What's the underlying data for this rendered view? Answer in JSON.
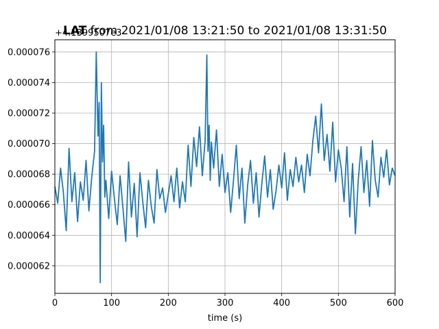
{
  "chart_data": {
    "type": "line",
    "title": "LAT from 2021/01/08 13:21:50 to 2021/01/08 13:31:50",
    "title_bold_part": "LAT",
    "title_rest": " from 2021/01/08 13:21:50 to 2021/01/08 13:31:50",
    "xlabel": "time (s)",
    "ylabel": "",
    "y_offset_label": "+4.1399507e3",
    "xlim": [
      0,
      600
    ],
    "ylim": [
      6.02e-05,
      7.68e-05
    ],
    "xticks": [
      0,
      100,
      200,
      300,
      400,
      500,
      600
    ],
    "yticks": [
      6.2e-05,
      6.4e-05,
      6.6e-05,
      6.8e-05,
      7e-05,
      7.2e-05,
      7.4e-05,
      7.6e-05
    ],
    "ytick_labels": [
      "0.000062",
      "0.000064",
      "0.000066",
      "0.000068",
      "0.000070",
      "0.000072",
      "0.000074",
      "0.000076"
    ],
    "grid": true,
    "line_color": "#1f77b4",
    "series": [
      {
        "values_note": "",
        "x": [
          0,
          5,
          10,
          15,
          20,
          25,
          30,
          35,
          40,
          45,
          50,
          55,
          60,
          65,
          70,
          73,
          76,
          78,
          80,
          82,
          84,
          86,
          88,
          90,
          95,
          100,
          105,
          110,
          115,
          120,
          125,
          130,
          135,
          140,
          145,
          150,
          155,
          160,
          165,
          170,
          175,
          180,
          185,
          190,
          195,
          200,
          205,
          210,
          215,
          220,
          225,
          230,
          235,
          240,
          245,
          250,
          255,
          260,
          265,
          268,
          270,
          272,
          274,
          276,
          280,
          285,
          290,
          295,
          300,
          305,
          310,
          315,
          320,
          325,
          330,
          335,
          340,
          345,
          350,
          355,
          360,
          365,
          370,
          375,
          380,
          385,
          390,
          395,
          400,
          405,
          410,
          415,
          420,
          425,
          430,
          435,
          440,
          445,
          450,
          455,
          460,
          465,
          470,
          475,
          480,
          485,
          490,
          495,
          500,
          505,
          510,
          515,
          520,
          525,
          530,
          535,
          540,
          545,
          550,
          555,
          560,
          565,
          570,
          575,
          580,
          585,
          590,
          595,
          600
        ],
        "y": [
          6.72e-05,
          6.61e-05,
          6.84e-05,
          6.68e-05,
          6.43e-05,
          6.97e-05,
          6.62e-05,
          6.81e-05,
          6.49e-05,
          6.75e-05,
          6.63e-05,
          6.89e-05,
          6.56e-05,
          6.78e-05,
          6.95e-05,
          7.6e-05,
          7.05e-05,
          7.27e-05,
          6.09e-05,
          7.4e-05,
          6.88e-05,
          7.12e-05,
          6.65e-05,
          6.76e-05,
          6.51e-05,
          6.82e-05,
          6.64e-05,
          6.47e-05,
          6.79e-05,
          6.58e-05,
          6.36e-05,
          6.88e-05,
          6.52e-05,
          6.74e-05,
          6.39e-05,
          6.81e-05,
          6.62e-05,
          6.45e-05,
          6.76e-05,
          6.59e-05,
          6.48e-05,
          6.83e-05,
          6.64e-05,
          6.71e-05,
          6.55e-05,
          6.67e-05,
          6.79e-05,
          6.62e-05,
          6.84e-05,
          6.58e-05,
          6.75e-05,
          6.62e-05,
          6.99e-05,
          6.72e-05,
          7.04e-05,
          6.85e-05,
          7.11e-05,
          6.79e-05,
          7.02e-05,
          7.58e-05,
          6.95e-05,
          7.12e-05,
          6.76e-05,
          7.01e-05,
          6.84e-05,
          7.09e-05,
          6.72e-05,
          6.93e-05,
          6.68e-05,
          6.81e-05,
          6.55e-05,
          6.76e-05,
          6.99e-05,
          6.64e-05,
          6.84e-05,
          6.48e-05,
          6.73e-05,
          6.89e-05,
          6.61e-05,
          6.81e-05,
          6.52e-05,
          6.74e-05,
          6.92e-05,
          6.65e-05,
          6.83e-05,
          6.57e-05,
          6.69e-05,
          6.86e-05,
          6.71e-05,
          6.94e-05,
          6.63e-05,
          6.83e-05,
          6.72e-05,
          6.91e-05,
          6.75e-05,
          6.86e-05,
          6.68e-05,
          6.93e-05,
          6.79e-05,
          7.02e-05,
          7.18e-05,
          6.94e-05,
          7.26e-05,
          6.89e-05,
          7.06e-05,
          6.82e-05,
          7.14e-05,
          6.75e-05,
          6.96e-05,
          6.84e-05,
          6.62e-05,
          6.98e-05,
          6.52e-05,
          6.87e-05,
          6.41e-05,
          6.76e-05,
          6.98e-05,
          6.68e-05,
          6.89e-05,
          6.59e-05,
          7.02e-05,
          6.76e-05,
          6.65e-05,
          6.91e-05,
          6.78e-05,
          6.96e-05,
          6.73e-05,
          6.84e-05,
          6.79e-05
        ]
      }
    ]
  }
}
